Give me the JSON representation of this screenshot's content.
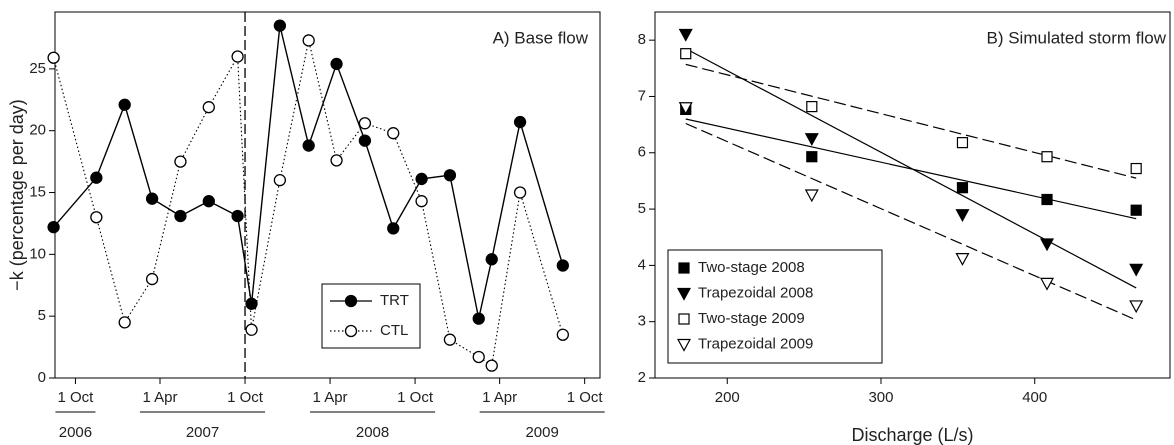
{
  "chart_data": [
    {
      "type": "line",
      "annotation": "A) Base flow",
      "ylabel": "−k (percentage per day)",
      "x": [
        "2006-08",
        "2006-11",
        "2007-01",
        "2007-03",
        "2007-05",
        "2007-07",
        "2007-09",
        "2007-10",
        "2007-12",
        "2008-02",
        "2008-04",
        "2008-06",
        "2008-08",
        "2008-10",
        "2008-12",
        "2009-02",
        "2009-03",
        "2009-05",
        "2009-08"
      ],
      "xlim": [
        "2006-08-18",
        "2009-11-03"
      ],
      "xticks": [
        {
          "value": "2006-10-01",
          "label": "1 Oct"
        },
        {
          "value": "2007-04-01",
          "label": "1 Apr"
        },
        {
          "value": "2007-10-01",
          "label": "1 Oct"
        },
        {
          "value": "2008-04-01",
          "label": "1 Apr"
        },
        {
          "value": "2008-10-01",
          "label": "1 Oct"
        },
        {
          "value": "2009-04-01",
          "label": "1 Apr"
        },
        {
          "value": "2009-10-01",
          "label": "1 Oct"
        }
      ],
      "year_labels": [
        "2006",
        "2007",
        "2008",
        "2009"
      ],
      "vline": "2007-10-01",
      "ylim": [
        0,
        29.6
      ],
      "yticks": [
        0,
        5,
        10,
        15,
        20,
        25
      ],
      "legend": "lower center",
      "series": [
        {
          "name": "TRT",
          "color": "#000000",
          "filled": true,
          "line": "solid",
          "values": [
            12.2,
            16.2,
            22.1,
            14.5,
            13.1,
            14.3,
            13.1,
            6.0,
            28.5,
            18.8,
            25.4,
            19.2,
            12.1,
            16.1,
            16.4,
            4.8,
            9.6,
            20.7,
            9.1
          ]
        },
        {
          "name": "CTL",
          "color": "#000000",
          "filled": false,
          "line": "dotted",
          "values": [
            25.9,
            13.0,
            4.5,
            8.0,
            17.5,
            21.9,
            26.0,
            3.9,
            16.0,
            27.3,
            17.6,
            20.6,
            19.8,
            14.3,
            3.1,
            1.7,
            1.0,
            15.0,
            3.5
          ]
        }
      ]
    },
    {
      "type": "scatter",
      "annotation": "B) Simulated storm flow",
      "xlabel": "Discharge (L/s)",
      "x": [
        173,
        255,
        353,
        408,
        466
      ],
      "fit_x": [
        173,
        466
      ],
      "xlim": [
        153,
        488
      ],
      "xticks": [
        200,
        300,
        400
      ],
      "ylim": [
        2,
        8.5
      ],
      "yticks": [
        2,
        3,
        4,
        5,
        6,
        7,
        8
      ],
      "legend": "lower left",
      "series": [
        {
          "name": "Two-stage 2008",
          "color": "#000000",
          "marker": "square",
          "filled": true,
          "fit_dashed": false,
          "values": [
            6.77,
            5.93,
            5.38,
            5.17,
            4.98
          ],
          "fit": [
            6.6,
            4.83
          ]
        },
        {
          "name": "Trapezoidal 2008",
          "color": "#000000",
          "marker": "triangle-down",
          "filled": true,
          "fit_dashed": false,
          "values": [
            8.1,
            6.25,
            4.9,
            4.38,
            3.93
          ],
          "fit": [
            7.85,
            3.6
          ]
        },
        {
          "name": "Two-stage 2009",
          "color": "#000000",
          "marker": "square",
          "filled": false,
          "fit_dashed": true,
          "values": [
            7.76,
            6.82,
            6.18,
            5.93,
            5.72
          ],
          "fit": [
            7.57,
            5.55
          ]
        },
        {
          "name": "Trapezoidal 2009",
          "color": "#000000",
          "marker": "triangle-down",
          "filled": false,
          "fit_dashed": true,
          "values": [
            6.8,
            5.25,
            4.12,
            3.68,
            3.28
          ],
          "fit": [
            6.52,
            3.03
          ]
        }
      ]
    }
  ]
}
